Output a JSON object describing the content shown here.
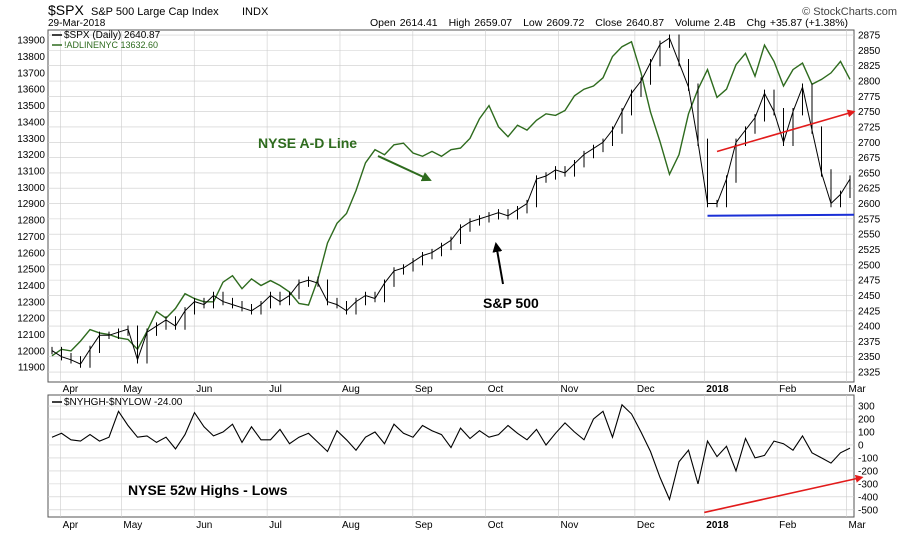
{
  "header": {
    "symbol": "$SPX",
    "name": "S&P 500 Large Cap Index",
    "exchange": "INDX",
    "date": "29-Mar-2018",
    "open_label": "Open",
    "open": "2614.41",
    "high_label": "High",
    "high": "2659.07",
    "low_label": "Low",
    "low": "2609.72",
    "close_label": "Close",
    "close": "2640.87",
    "volume_label": "Volume",
    "volume": "2.4B",
    "chg_label": "Chg",
    "chg": "+35.87 (+1.38%)",
    "watermark": "© StockCharts.com"
  },
  "legend": {
    "spx": "$SPX (Daily) 2640.87",
    "adline": "!ADLINENYC 13632.60",
    "hilo": "$NYHGH-$NYLOW -24.00"
  },
  "annotations": {
    "adline": "NYSE A-D Line",
    "spx": "S&P 500",
    "hilo": "NYSE 52w Highs - Lows"
  },
  "colors": {
    "adline": "#2e6b1e",
    "price": "#000000",
    "support": "#1a2fd6",
    "trend_arrow": "#e21b1b",
    "grid": "#cccccc"
  },
  "chart_data": [
    {
      "type": "line",
      "name": "price-panel",
      "x_labels": [
        "Apr",
        "May",
        "Jun",
        "Jul",
        "Aug",
        "Sep",
        "Oct",
        "Nov",
        "Dec",
        "2018",
        "Feb",
        "Mar"
      ],
      "y_right_ticks": [
        2325,
        2350,
        2375,
        2400,
        2425,
        2450,
        2475,
        2500,
        2525,
        2550,
        2575,
        2600,
        2625,
        2650,
        2675,
        2700,
        2725,
        2750,
        2775,
        2800,
        2825,
        2850,
        2875
      ],
      "y_left_ticks": [
        11900,
        12000,
        12100,
        12200,
        12300,
        12400,
        12500,
        12600,
        12700,
        12800,
        12900,
        13000,
        13100,
        13200,
        13300,
        13400,
        13500,
        13600,
        13700,
        13800,
        13900
      ],
      "y_right_range": [
        2312,
        2880
      ],
      "y_left_range": [
        11822,
        13950
      ],
      "series": [
        {
          "name": "$SPX (Daily) 2640.87",
          "axis": "right",
          "x": [
            0,
            3,
            6,
            9,
            12,
            15,
            18,
            21,
            24,
            27,
            30,
            33,
            36,
            39,
            42,
            45,
            48,
            51,
            54,
            57,
            60,
            63,
            66,
            69,
            72,
            75,
            78,
            81,
            84,
            87,
            90,
            93,
            96,
            99,
            102,
            105,
            108,
            111,
            114,
            117,
            120,
            123,
            126,
            129,
            132,
            135,
            138,
            141,
            144,
            147,
            150,
            153,
            156,
            159,
            162,
            165,
            168,
            171,
            174,
            177,
            180,
            183,
            186,
            189,
            192,
            195,
            198,
            201,
            204,
            207,
            210,
            213,
            216,
            219,
            222,
            225,
            228,
            231,
            234,
            237,
            240,
            243,
            246,
            249,
            252
          ],
          "values": [
            2360,
            2350,
            2345,
            2338,
            2362,
            2385,
            2385,
            2390,
            2395,
            2345,
            2390,
            2400,
            2410,
            2400,
            2425,
            2440,
            2435,
            2450,
            2440,
            2435,
            2430,
            2425,
            2435,
            2450,
            2440,
            2450,
            2470,
            2475,
            2470,
            2440,
            2435,
            2425,
            2440,
            2450,
            2445,
            2470,
            2490,
            2495,
            2505,
            2515,
            2520,
            2530,
            2540,
            2560,
            2570,
            2575,
            2580,
            2585,
            2580,
            2590,
            2600,
            2640,
            2645,
            2655,
            2650,
            2665,
            2680,
            2690,
            2700,
            2720,
            2750,
            2780,
            2800,
            2830,
            2860,
            2870,
            2830,
            2790,
            2700,
            2600,
            2600,
            2640,
            2700,
            2720,
            2740,
            2780,
            2750,
            2700,
            2750,
            2790,
            2720,
            2650,
            2600,
            2615,
            2640
          ]
        },
        {
          "name": "!ADLINENYC 13632.60",
          "axis": "left",
          "x": [
            0,
            3,
            6,
            9,
            12,
            15,
            18,
            21,
            24,
            27,
            30,
            33,
            36,
            39,
            42,
            45,
            48,
            51,
            54,
            57,
            60,
            63,
            66,
            69,
            72,
            75,
            78,
            81,
            84,
            87,
            90,
            93,
            96,
            99,
            102,
            105,
            108,
            111,
            114,
            117,
            120,
            123,
            126,
            129,
            132,
            135,
            138,
            141,
            144,
            147,
            150,
            153,
            156,
            159,
            162,
            165,
            168,
            171,
            174,
            177,
            180,
            183,
            186,
            189,
            192,
            195,
            198,
            201,
            204,
            207,
            210,
            213,
            216,
            219,
            222,
            225,
            228,
            231,
            234,
            237,
            240,
            243,
            246,
            249,
            252
          ],
          "values": [
            11970,
            12010,
            12000,
            12060,
            12130,
            12110,
            12100,
            12080,
            12070,
            12010,
            12120,
            12240,
            12200,
            12260,
            12350,
            12320,
            12300,
            12300,
            12420,
            12460,
            12380,
            12440,
            12400,
            12430,
            12400,
            12360,
            12290,
            12280,
            12440,
            12660,
            12780,
            12840,
            12980,
            13150,
            13230,
            13200,
            13260,
            13270,
            13210,
            13190,
            13220,
            13190,
            13230,
            13240,
            13300,
            13420,
            13500,
            13370,
            13310,
            13380,
            13350,
            13410,
            13450,
            13440,
            13470,
            13560,
            13600,
            13620,
            13670,
            13800,
            13860,
            13890,
            13700,
            13460,
            13280,
            13080,
            13200,
            13450,
            13600,
            13720,
            13550,
            13600,
            13750,
            13820,
            13680,
            13870,
            13770,
            13620,
            13720,
            13760,
            13630,
            13660,
            13700,
            13770,
            13660
          ]
        }
      ],
      "support_line": {
        "value": 2580
      },
      "trend_arrow": {
        "from": 2685,
        "to": 2750
      }
    },
    {
      "type": "line",
      "name": "highs-lows-panel",
      "x_labels": [
        "Apr",
        "May",
        "Jun",
        "Jul",
        "Aug",
        "Sep",
        "Oct",
        "Nov",
        "Dec",
        "2018",
        "Feb",
        "Mar"
      ],
      "y_ticks": [
        -500,
        -400,
        -300,
        -200,
        -100,
        0,
        100,
        200,
        300
      ],
      "y_range": [
        -540,
        370
      ],
      "series": [
        {
          "name": "$NYHGH-$NYLOW -24.00",
          "x": [
            0,
            3,
            6,
            9,
            12,
            15,
            18,
            21,
            24,
            27,
            30,
            33,
            36,
            39,
            42,
            45,
            48,
            51,
            54,
            57,
            60,
            63,
            66,
            69,
            72,
            75,
            78,
            81,
            84,
            87,
            90,
            93,
            96,
            99,
            102,
            105,
            108,
            111,
            114,
            117,
            120,
            123,
            126,
            129,
            132,
            135,
            138,
            141,
            144,
            147,
            150,
            153,
            156,
            159,
            162,
            165,
            168,
            171,
            174,
            177,
            180,
            183,
            186,
            189,
            192,
            195,
            198,
            201,
            204,
            207,
            210,
            213,
            216,
            219,
            222,
            225,
            228,
            231,
            234,
            237,
            240,
            243,
            246,
            249,
            252
          ],
          "values": [
            60,
            90,
            40,
            30,
            80,
            30,
            60,
            260,
            150,
            60,
            70,
            20,
            60,
            -30,
            80,
            250,
            140,
            70,
            100,
            160,
            20,
            140,
            40,
            40,
            120,
            10,
            60,
            90,
            20,
            -50,
            110,
            40,
            -40,
            60,
            100,
            10,
            160,
            90,
            60,
            150,
            110,
            80,
            -20,
            130,
            50,
            110,
            60,
            80,
            150,
            90,
            40,
            120,
            0,
            90,
            170,
            100,
            40,
            200,
            260,
            60,
            310,
            240,
            100,
            -50,
            -250,
            -420,
            -130,
            -40,
            -300,
            30,
            -90,
            -10,
            -200,
            50,
            -100,
            -80,
            30,
            10,
            -40,
            70,
            -60,
            -100,
            -140,
            -60,
            -24
          ]
        }
      ],
      "trend_arrow": {
        "from": -520,
        "to": -250
      }
    }
  ]
}
